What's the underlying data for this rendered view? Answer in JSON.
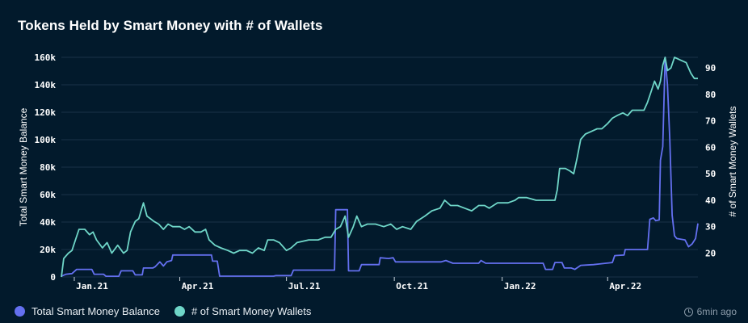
{
  "header": {
    "title": "Tokens Held by Smart Money with # of Wallets"
  },
  "colors": {
    "balance": "#6470f0",
    "wallets": "#6fd6c8",
    "background": "#021a2c",
    "grid": "#1b3347"
  },
  "chart_data": {
    "type": "line",
    "title": "Tokens Held by Smart Money with # of Wallets",
    "ylabel_left": "Total Smart Money Balance",
    "ylabel_right": "# of Smart Money Wallets",
    "ylim_left": [
      0,
      160000
    ],
    "ylim_right": [
      11,
      94
    ],
    "yticks_left": [
      "0",
      "20k",
      "40k",
      "60k",
      "80k",
      "100k",
      "120k",
      "140k",
      "160k"
    ],
    "yticks_right": [
      "20",
      "30",
      "40",
      "50",
      "60",
      "70",
      "80",
      "90"
    ],
    "xtick_labels": [
      "Jan.21",
      "Apr.21",
      "Jul.21",
      "Oct.21",
      "Jan.22",
      "Apr.22"
    ],
    "xtick_dates": [
      "2021-01-01",
      "2021-04-01",
      "2021-07-01",
      "2021-10-01",
      "2022-01-01",
      "2022-04-01"
    ],
    "x_range": [
      "2020-12-21",
      "2022-06-17"
    ],
    "legend_position": "bottom-left",
    "grid": "horizontal",
    "series": [
      {
        "name": "Total Smart Money Balance",
        "axis": "left",
        "points": [
          [
            "2020-12-21",
            500
          ],
          [
            "2020-12-25",
            2000
          ],
          [
            "2020-12-30",
            2500
          ],
          [
            "2021-01-03",
            5500
          ],
          [
            "2021-01-16",
            5500
          ],
          [
            "2021-01-18",
            2000
          ],
          [
            "2021-01-26",
            2000
          ],
          [
            "2021-01-28",
            500
          ],
          [
            "2021-02-08",
            500
          ],
          [
            "2021-02-10",
            4500
          ],
          [
            "2021-02-20",
            4500
          ],
          [
            "2021-02-22",
            1500
          ],
          [
            "2021-02-28",
            1500
          ],
          [
            "2021-03-01",
            6500
          ],
          [
            "2021-03-09",
            6500
          ],
          [
            "2021-03-11",
            7500
          ],
          [
            "2021-03-15",
            11000
          ],
          [
            "2021-03-18",
            8000
          ],
          [
            "2021-03-21",
            11000
          ],
          [
            "2021-03-25",
            12000
          ],
          [
            "2021-03-26",
            16000
          ],
          [
            "2021-04-28",
            16000
          ],
          [
            "2021-04-29",
            11500
          ],
          [
            "2021-05-03",
            11500
          ],
          [
            "2021-05-05",
            600
          ],
          [
            "2021-06-20",
            600
          ],
          [
            "2021-06-22",
            1000
          ],
          [
            "2021-07-05",
            1000
          ],
          [
            "2021-07-07",
            5000
          ],
          [
            "2021-08-11",
            5000
          ],
          [
            "2021-08-12",
            49000
          ],
          [
            "2021-08-22",
            49000
          ],
          [
            "2021-08-23",
            4500
          ],
          [
            "2021-09-01",
            4500
          ],
          [
            "2021-09-03",
            9000
          ],
          [
            "2021-09-18",
            9000
          ],
          [
            "2021-09-19",
            14000
          ],
          [
            "2021-09-26",
            13500
          ],
          [
            "2021-09-30",
            14000
          ],
          [
            "2021-10-02",
            11000
          ],
          [
            "2021-11-10",
            11000
          ],
          [
            "2021-11-14",
            12000
          ],
          [
            "2021-11-20",
            10000
          ],
          [
            "2021-12-12",
            10000
          ],
          [
            "2021-12-14",
            12000
          ],
          [
            "2021-12-18",
            10000
          ],
          [
            "2022-02-05",
            10000
          ],
          [
            "2022-02-07",
            5500
          ],
          [
            "2022-02-13",
            5500
          ],
          [
            "2022-02-15",
            10500
          ],
          [
            "2022-02-21",
            10500
          ],
          [
            "2022-02-23",
            6500
          ],
          [
            "2022-03-01",
            6500
          ],
          [
            "2022-03-04",
            5500
          ],
          [
            "2022-03-09",
            8500
          ],
          [
            "2022-03-20",
            9000
          ],
          [
            "2022-03-25",
            9500
          ],
          [
            "2022-04-05",
            10500
          ],
          [
            "2022-04-07",
            15500
          ],
          [
            "2022-04-15",
            16000
          ],
          [
            "2022-04-16",
            20000
          ],
          [
            "2022-05-05",
            20000
          ],
          [
            "2022-05-07",
            42000
          ],
          [
            "2022-05-10",
            43000
          ],
          [
            "2022-05-12",
            41000
          ],
          [
            "2022-05-15",
            41500
          ],
          [
            "2022-05-16",
            85000
          ],
          [
            "2022-05-18",
            95000
          ],
          [
            "2022-05-20",
            160000
          ],
          [
            "2022-05-22",
            140000
          ],
          [
            "2022-05-24",
            100000
          ],
          [
            "2022-05-26",
            45000
          ],
          [
            "2022-05-28",
            30000
          ],
          [
            "2022-05-30",
            28000
          ],
          [
            "2022-06-06",
            27000
          ],
          [
            "2022-06-09",
            22000
          ],
          [
            "2022-06-12",
            24000
          ],
          [
            "2022-06-15",
            28000
          ],
          [
            "2022-06-17",
            39000
          ]
        ]
      },
      {
        "name": "# of Smart Money Wallets",
        "axis": "right",
        "points": [
          [
            "2020-12-21",
            11
          ],
          [
            "2020-12-23",
            18
          ],
          [
            "2020-12-27",
            20
          ],
          [
            "2020-12-30",
            21
          ],
          [
            "2021-01-02",
            25
          ],
          [
            "2021-01-05",
            29
          ],
          [
            "2021-01-10",
            29
          ],
          [
            "2021-01-14",
            27
          ],
          [
            "2021-01-17",
            28
          ],
          [
            "2021-01-20",
            25
          ],
          [
            "2021-01-25",
            22
          ],
          [
            "2021-01-29",
            24
          ],
          [
            "2021-02-02",
            20
          ],
          [
            "2021-02-07",
            23
          ],
          [
            "2021-02-12",
            20
          ],
          [
            "2021-02-15",
            21
          ],
          [
            "2021-02-18",
            28
          ],
          [
            "2021-02-22",
            32
          ],
          [
            "2021-02-25",
            33
          ],
          [
            "2021-03-01",
            39
          ],
          [
            "2021-03-04",
            34
          ],
          [
            "2021-03-07",
            33
          ],
          [
            "2021-03-10",
            32
          ],
          [
            "2021-03-14",
            31
          ],
          [
            "2021-03-18",
            29
          ],
          [
            "2021-03-22",
            31
          ],
          [
            "2021-03-26",
            30
          ],
          [
            "2021-04-01",
            30
          ],
          [
            "2021-04-05",
            29
          ],
          [
            "2021-04-09",
            30
          ],
          [
            "2021-04-14",
            28
          ],
          [
            "2021-04-19",
            28
          ],
          [
            "2021-04-23",
            29
          ],
          [
            "2021-04-26",
            25
          ],
          [
            "2021-05-01",
            23
          ],
          [
            "2021-05-06",
            22
          ],
          [
            "2021-05-12",
            21
          ],
          [
            "2021-05-17",
            20
          ],
          [
            "2021-05-22",
            21
          ],
          [
            "2021-05-28",
            21
          ],
          [
            "2021-06-02",
            20
          ],
          [
            "2021-06-07",
            22
          ],
          [
            "2021-06-12",
            21
          ],
          [
            "2021-06-15",
            25
          ],
          [
            "2021-06-20",
            25
          ],
          [
            "2021-06-25",
            24
          ],
          [
            "2021-07-01",
            21
          ],
          [
            "2021-07-05",
            22
          ],
          [
            "2021-07-10",
            24
          ],
          [
            "2021-07-20",
            25
          ],
          [
            "2021-07-28",
            25
          ],
          [
            "2021-08-03",
            26
          ],
          [
            "2021-08-08",
            26
          ],
          [
            "2021-08-12",
            29
          ],
          [
            "2021-08-16",
            30
          ],
          [
            "2021-08-20",
            34
          ],
          [
            "2021-08-23",
            26
          ],
          [
            "2021-08-27",
            30
          ],
          [
            "2021-08-30",
            34
          ],
          [
            "2021-09-03",
            30
          ],
          [
            "2021-09-08",
            31
          ],
          [
            "2021-09-15",
            31
          ],
          [
            "2021-09-22",
            30
          ],
          [
            "2021-09-28",
            31
          ],
          [
            "2021-10-03",
            29
          ],
          [
            "2021-10-08",
            30
          ],
          [
            "2021-10-15",
            29
          ],
          [
            "2021-10-20",
            32
          ],
          [
            "2021-10-27",
            34
          ],
          [
            "2021-11-02",
            36
          ],
          [
            "2021-11-09",
            37
          ],
          [
            "2021-11-13",
            40
          ],
          [
            "2021-11-18",
            38
          ],
          [
            "2021-11-24",
            38
          ],
          [
            "2021-11-30",
            37
          ],
          [
            "2021-12-06",
            36
          ],
          [
            "2021-12-12",
            38
          ],
          [
            "2021-12-17",
            38
          ],
          [
            "2021-12-21",
            37
          ],
          [
            "2021-12-28",
            39
          ],
          [
            "2022-01-06",
            39
          ],
          [
            "2022-01-12",
            40
          ],
          [
            "2022-01-15",
            41
          ],
          [
            "2022-01-22",
            41
          ],
          [
            "2022-01-30",
            40
          ],
          [
            "2022-02-05",
            40
          ],
          [
            "2022-02-10",
            40
          ],
          [
            "2022-02-15",
            40
          ],
          [
            "2022-02-17",
            44
          ],
          [
            "2022-02-19",
            52
          ],
          [
            "2022-02-24",
            52
          ],
          [
            "2022-02-28",
            51
          ],
          [
            "2022-03-03",
            50
          ],
          [
            "2022-03-06",
            56
          ],
          [
            "2022-03-09",
            63
          ],
          [
            "2022-03-13",
            65
          ],
          [
            "2022-03-18",
            66
          ],
          [
            "2022-03-23",
            67
          ],
          [
            "2022-03-27",
            67
          ],
          [
            "2022-04-01",
            69
          ],
          [
            "2022-04-05",
            71
          ],
          [
            "2022-04-09",
            72
          ],
          [
            "2022-04-14",
            73
          ],
          [
            "2022-04-18",
            72
          ],
          [
            "2022-04-22",
            74
          ],
          [
            "2022-04-28",
            74
          ],
          [
            "2022-05-02",
            74
          ],
          [
            "2022-05-05",
            77
          ],
          [
            "2022-05-08",
            81
          ],
          [
            "2022-05-11",
            85
          ],
          [
            "2022-05-14",
            82
          ],
          [
            "2022-05-16",
            85
          ],
          [
            "2022-05-18",
            91
          ],
          [
            "2022-05-20",
            94
          ],
          [
            "2022-05-22",
            89
          ],
          [
            "2022-05-25",
            90
          ],
          [
            "2022-05-28",
            94
          ],
          [
            "2022-06-02",
            93
          ],
          [
            "2022-06-07",
            92
          ],
          [
            "2022-06-11",
            88
          ],
          [
            "2022-06-14",
            86
          ],
          [
            "2022-06-17",
            86
          ]
        ]
      }
    ]
  },
  "legend": {
    "balance_label": "Total Smart Money Balance",
    "wallets_label": "# of Smart Money Wallets"
  },
  "footer": {
    "timestamp": "6min ago"
  }
}
